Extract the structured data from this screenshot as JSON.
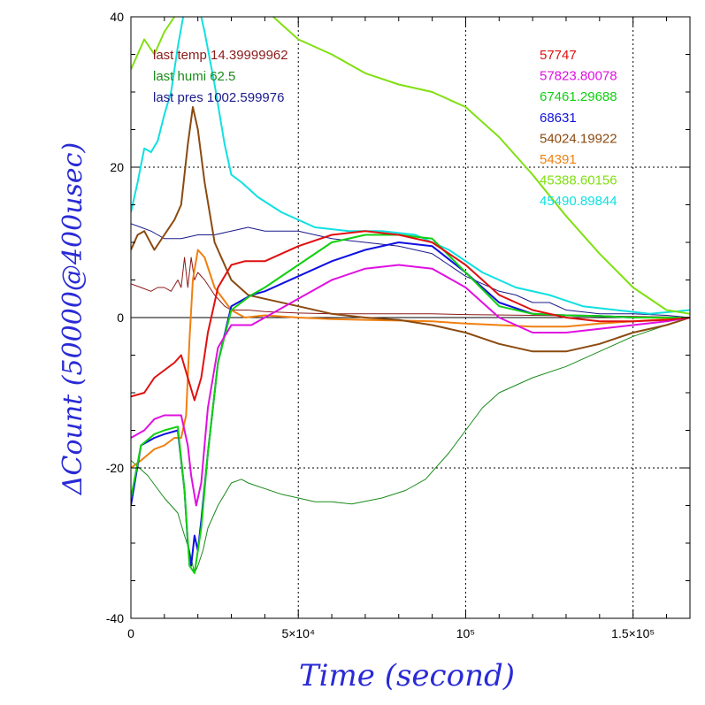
{
  "chart_data": {
    "type": "line",
    "xlabel": "Time (second)",
    "ylabel": "ΔCount (50000@400usec)",
    "xlim": [
      0,
      167000
    ],
    "ylim": [
      -40,
      40
    ],
    "grid": true,
    "xticks": [
      {
        "value": 0,
        "label": "0"
      },
      {
        "value": 50000,
        "label": "5×10⁴"
      },
      {
        "value": 100000,
        "label": "10⁵"
      },
      {
        "value": 150000,
        "label": "1.5×10⁵"
      }
    ],
    "yticks": [
      {
        "value": -40,
        "label": "-40"
      },
      {
        "value": -20,
        "label": "-20"
      },
      {
        "value": 0,
        "label": "0"
      },
      {
        "value": 20,
        "label": "20"
      },
      {
        "value": 40,
        "label": "40"
      }
    ],
    "annotations_left": [
      {
        "text": "last temp 14.39999962",
        "color": "#8b1a1a"
      },
      {
        "text": "last humi 62.5",
        "color": "#1a8b1a"
      },
      {
        "text": "last pres 1002.599976",
        "color": "#1a1a8b"
      }
    ],
    "series": [
      {
        "name": "57747",
        "color": "#e01010",
        "width": 2,
        "x": [
          0,
          4000,
          7000,
          10000,
          13000,
          15000,
          17000,
          19000,
          21000,
          23000,
          26000,
          30000,
          34000,
          40000,
          50000,
          60000,
          70000,
          80000,
          90000,
          100000,
          110000,
          120000,
          130000,
          140000,
          150000,
          160000,
          167000
        ],
        "y": [
          -10.5,
          -10,
          -8,
          -7,
          -6,
          -5,
          -8,
          -11,
          -8,
          -2,
          4,
          7,
          7.5,
          7.5,
          9.5,
          11,
          11.5,
          11,
          10,
          7,
          3,
          1,
          0,
          -0.5,
          -0.5,
          -0.3,
          0
        ]
      },
      {
        "name": "57823.80078",
        "color": "#e010e0",
        "width": 2,
        "x": [
          0,
          4000,
          7000,
          10000,
          13000,
          15000,
          17000,
          18000,
          19500,
          21000,
          23000,
          26000,
          30000,
          36000,
          40000,
          50000,
          60000,
          70000,
          80000,
          90000,
          100000,
          110000,
          120000,
          130000,
          140000,
          150000,
          160000,
          167000
        ],
        "y": [
          -16,
          -15,
          -13.5,
          -13,
          -13,
          -13,
          -17,
          -21,
          -25,
          -22,
          -12,
          -4,
          -1,
          -1,
          0,
          2.5,
          5,
          6.5,
          7,
          6.5,
          4,
          0,
          -2,
          -2,
          -1.5,
          -1,
          -0.5,
          0
        ]
      },
      {
        "name": "67461.29688",
        "color": "#10d010",
        "width": 2,
        "x": [
          0,
          3000,
          7000,
          10000,
          14000,
          16000,
          17500,
          19000,
          21000,
          23000,
          26000,
          30000,
          36000,
          40000,
          50000,
          60000,
          70000,
          80000,
          90000,
          100000,
          110000,
          120000,
          130000,
          140000,
          150000,
          160000,
          167000
        ],
        "y": [
          -24,
          -17,
          -15.5,
          -15,
          -14.5,
          -23,
          -33,
          -34,
          -28,
          -18,
          -6,
          1,
          3,
          4,
          7,
          10,
          11,
          11,
          10.5,
          6,
          1.5,
          0.5,
          0.3,
          0.2,
          0,
          0,
          0
        ]
      },
      {
        "name": "68631",
        "color": "#1010e0",
        "width": 2,
        "x": [
          0,
          3000,
          7000,
          10000,
          14000,
          16000,
          17000,
          18000,
          19000,
          20000,
          21000,
          23000,
          26000,
          30000,
          36000,
          40000,
          50000,
          60000,
          70000,
          80000,
          90000,
          100000,
          110000,
          120000,
          130000,
          140000,
          150000,
          160000,
          167000
        ],
        "y": [
          -25,
          -17,
          -16,
          -15.5,
          -15,
          -23,
          -30,
          -33,
          -29,
          -31,
          -27,
          -18,
          -6,
          1.5,
          3,
          3.5,
          5.5,
          7.5,
          9,
          10,
          9.5,
          6,
          2,
          0.5,
          0.3,
          0.2,
          0,
          0,
          0
        ]
      },
      {
        "name": "54024.19922",
        "color": "#8b4a10",
        "width": 2,
        "x": [
          0,
          2000,
          4000,
          7000,
          10000,
          13000,
          15000,
          17000,
          18500,
          20000,
          22000,
          25000,
          30000,
          35000,
          40000,
          50000,
          60000,
          70000,
          80000,
          90000,
          100000,
          110000,
          120000,
          130000,
          140000,
          150000,
          160000,
          167000
        ],
        "y": [
          9,
          11,
          11.5,
          9,
          11,
          13,
          15,
          23,
          28,
          25,
          18,
          10,
          5,
          3,
          2.5,
          1.5,
          0.5,
          0,
          -0.3,
          -1,
          -2,
          -3.5,
          -4.5,
          -4.5,
          -3.5,
          -2,
          -1,
          0
        ]
      },
      {
        "name": "54391",
        "color": "#f08010",
        "width": 2,
        "x": [
          0,
          3000,
          7000,
          10000,
          13000,
          15000,
          16500,
          17500,
          18500,
          20000,
          22000,
          25000,
          30000,
          34000,
          40000,
          50000,
          60000,
          70000,
          80000,
          90000,
          100000,
          110000,
          120000,
          130000,
          140000,
          150000,
          160000,
          167000
        ],
        "y": [
          -20,
          -19,
          -17.5,
          -17,
          -16,
          -16,
          -13,
          -3,
          5,
          9,
          8,
          4,
          1,
          0,
          0.3,
          0,
          -0.2,
          -0.3,
          -0.4,
          -0.5,
          -0.8,
          -1,
          -1.2,
          -1.2,
          -0.8,
          -0.5,
          -0.2,
          0
        ]
      },
      {
        "name": "45388.60156",
        "color": "#80e010",
        "width": 2,
        "x": [
          0,
          2000,
          4000,
          7000,
          10000,
          13000,
          15000,
          17000,
          18500,
          20000,
          25000,
          30000,
          40000,
          50000,
          60000,
          70000,
          80000,
          90000,
          100000,
          110000,
          120000,
          130000,
          140000,
          150000,
          160000,
          167000
        ],
        "y": [
          33,
          35,
          37,
          35,
          38,
          40,
          42,
          44,
          45,
          46,
          46,
          45,
          41,
          37,
          35,
          32.5,
          31,
          30,
          28,
          24,
          19,
          13.5,
          8.5,
          4,
          1,
          0.5
        ]
      },
      {
        "name": "45490.89844",
        "color": "#10e0e0",
        "width": 2,
        "x": [
          0,
          2000,
          4000,
          6000,
          8000,
          10000,
          12000,
          14000,
          16000,
          18000,
          20000,
          22000,
          25000,
          28000,
          30000,
          33000,
          38000,
          45000,
          55000,
          65000,
          75000,
          85000,
          95000,
          105000,
          115000,
          125000,
          135000,
          145000,
          155000,
          167000
        ],
        "y": [
          14,
          18,
          22.5,
          22,
          23.5,
          27,
          30,
          36,
          41,
          43,
          42,
          38,
          31,
          23,
          19,
          18,
          16,
          14,
          12,
          11.5,
          11.5,
          11,
          9,
          6,
          4,
          3,
          1.5,
          1,
          0.5,
          1
        ]
      },
      {
        "name": "",
        "color": "#8b1a1a",
        "width": 1,
        "x": [
          0,
          3000,
          6000,
          8000,
          10000,
          12000,
          14000,
          15000,
          16000,
          17000,
          18000,
          19000,
          20000,
          22000,
          25000,
          28000,
          30000,
          35000,
          40000,
          50000,
          60000,
          70000,
          80000,
          90000,
          100000,
          120000,
          140000,
          160000,
          167000
        ],
        "y": [
          4.5,
          4,
          3.5,
          4,
          4,
          3.5,
          5,
          4,
          8,
          4,
          8,
          5,
          6,
          5,
          3,
          1.5,
          1,
          1,
          0.8,
          0.6,
          0.5,
          0.5,
          0.5,
          0.5,
          0.4,
          0.3,
          0.2,
          0.1,
          0
        ]
      },
      {
        "name": "",
        "color": "#1a8b1a",
        "width": 1,
        "x": [
          0,
          5000,
          10000,
          14000,
          16000,
          17500,
          19000,
          20000,
          21500,
          23000,
          26000,
          30000,
          33000,
          35000,
          45000,
          55000,
          60000,
          66000,
          75000,
          82000,
          88000,
          95000,
          100000,
          105000,
          110000,
          120000,
          130000,
          140000,
          150000,
          160000,
          167000
        ],
        "y": [
          -19,
          -21,
          -24,
          -26,
          -29,
          -31,
          -34,
          -33,
          -31,
          -28,
          -25,
          -22,
          -21.5,
          -22,
          -23.5,
          -24.5,
          -24.5,
          -24.8,
          -24,
          -23,
          -21.5,
          -18,
          -15,
          -12,
          -10,
          -8,
          -6.5,
          -4.5,
          -2.5,
          -1,
          0
        ]
      },
      {
        "name": "",
        "color": "#1a1a8b",
        "width": 1,
        "x": [
          0,
          3000,
          6000,
          8000,
          10000,
          15000,
          20000,
          25000,
          30000,
          35000,
          40000,
          50000,
          55000,
          60000,
          70000,
          80000,
          90000,
          95000,
          100000,
          105000,
          110000,
          115000,
          120000,
          125000,
          130000,
          140000,
          150000,
          160000,
          167000
        ],
        "y": [
          12.5,
          12,
          11.5,
          11,
          10.5,
          10.5,
          11,
          11,
          11.5,
          12,
          11.5,
          11.5,
          11,
          10.5,
          10,
          9.5,
          8.5,
          7,
          5.5,
          4.5,
          3.5,
          3,
          2,
          2,
          1,
          0.5,
          0.5,
          0.3,
          0
        ]
      }
    ]
  }
}
